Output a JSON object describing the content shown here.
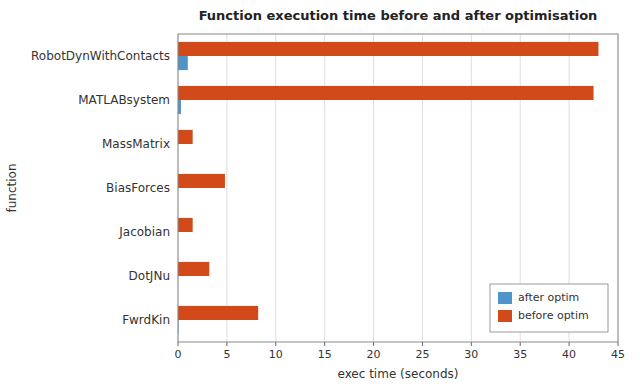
{
  "chart_data": {
    "type": "bar",
    "orientation": "horizontal",
    "title": "Function execution time before and after optimisation",
    "x_label": "exec time (seconds)",
    "y_label": "function",
    "categories": [
      "RobotDynWithContacts",
      "MATLABsystem",
      "MassMatrix",
      "BiasForces",
      "Jacobian",
      "DotJNu",
      "FwrdKin"
    ],
    "series": [
      {
        "name": "after optim",
        "color": "#4F93C8",
        "values": [
          1.0,
          0.3,
          0.0,
          0.0,
          0.0,
          0.0,
          0.05
        ]
      },
      {
        "name": "before optim",
        "color": "#D2491A",
        "values": [
          43.0,
          42.5,
          1.5,
          4.8,
          1.5,
          3.2,
          8.2
        ]
      }
    ],
    "xlim": [
      0,
      45
    ],
    "xticks": [
      0,
      5,
      10,
      15,
      20,
      25,
      30,
      35,
      40,
      45
    ],
    "grid": true,
    "legend": "lower right"
  }
}
